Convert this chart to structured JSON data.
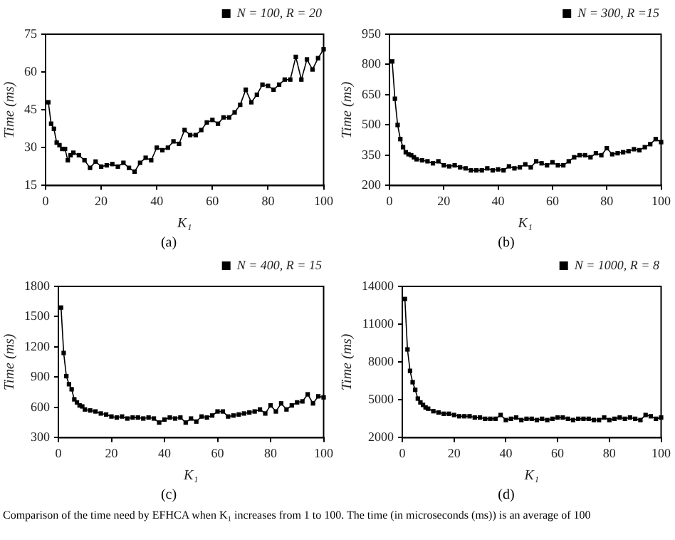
{
  "chart_data": [
    {
      "type": "line",
      "xlabel": "K₁",
      "ylabel": "Time (ms)",
      "annotations": [
        "(a)"
      ],
      "xlim": [
        0,
        100
      ],
      "xticks": [
        0,
        20,
        40,
        60,
        80,
        100
      ],
      "ylim": [
        15,
        75
      ],
      "yticks": [
        15,
        30,
        45,
        60,
        75
      ],
      "legend": "top right",
      "marker": "square",
      "line_style": "solid",
      "grid": false,
      "series": [
        {
          "name": "N = 100, R = 20",
          "color": "#000000",
          "x": [
            1,
            2,
            3,
            4,
            5,
            6,
            7,
            8,
            9,
            10,
            12,
            14,
            16,
            18,
            20,
            22,
            24,
            26,
            28,
            30,
            32,
            34,
            36,
            38,
            40,
            42,
            44,
            46,
            48,
            50,
            52,
            54,
            56,
            58,
            60,
            62,
            64,
            66,
            68,
            70,
            72,
            74,
            76,
            78,
            80,
            82,
            84,
            86,
            88,
            90,
            92,
            94,
            96,
            98,
            100
          ],
          "values": [
            48,
            39.5,
            37.5,
            32,
            31,
            29.5,
            29.5,
            25,
            27,
            28,
            27,
            25,
            22,
            24.5,
            22.5,
            23,
            23.5,
            22.5,
            24,
            22,
            20.5,
            24,
            26,
            25,
            30,
            29,
            30,
            32.5,
            31.5,
            37,
            35,
            35,
            37,
            40,
            41,
            39.5,
            42,
            42,
            44,
            47,
            53,
            48,
            51,
            55,
            54.5,
            53,
            55,
            57,
            57,
            66,
            57,
            65,
            61,
            65.5,
            69
          ]
        }
      ]
    },
    {
      "type": "line",
      "xlabel": "K₁",
      "ylabel": "Time (ms)",
      "annotations": [
        "(b)"
      ],
      "xlim": [
        0,
        100
      ],
      "xticks": [
        0,
        20,
        40,
        60,
        80,
        100
      ],
      "ylim": [
        200,
        950
      ],
      "yticks": [
        200,
        350,
        500,
        650,
        800,
        950
      ],
      "legend": "top right",
      "marker": "square",
      "line_style": "solid",
      "grid": false,
      "series": [
        {
          "name": "N = 300, R =15",
          "color": "#000000",
          "x": [
            1,
            2,
            3,
            4,
            5,
            6,
            7,
            8,
            9,
            10,
            12,
            14,
            16,
            18,
            20,
            22,
            24,
            26,
            28,
            30,
            32,
            34,
            36,
            38,
            40,
            42,
            44,
            46,
            48,
            50,
            52,
            54,
            56,
            58,
            60,
            62,
            64,
            66,
            68,
            70,
            72,
            74,
            76,
            78,
            80,
            82,
            84,
            86,
            88,
            90,
            92,
            94,
            96,
            98,
            100
          ],
          "values": [
            815,
            630,
            500,
            430,
            390,
            365,
            355,
            350,
            340,
            330,
            325,
            320,
            310,
            320,
            300,
            295,
            300,
            290,
            285,
            275,
            275,
            275,
            285,
            275,
            280,
            275,
            295,
            285,
            290,
            305,
            290,
            320,
            310,
            300,
            315,
            300,
            300,
            320,
            340,
            350,
            350,
            340,
            360,
            350,
            385,
            355,
            360,
            365,
            370,
            380,
            375,
            390,
            405,
            430,
            415
          ]
        }
      ]
    },
    {
      "type": "line",
      "xlabel": "K₁",
      "ylabel": "Time (ms)",
      "annotations": [
        "(c)"
      ],
      "xlim": [
        0,
        100
      ],
      "xticks": [
        0,
        20,
        40,
        60,
        80,
        100
      ],
      "ylim": [
        300,
        1800
      ],
      "yticks": [
        300,
        600,
        900,
        1200,
        1500,
        1800
      ],
      "legend": "top right",
      "marker": "square",
      "line_style": "solid",
      "grid": false,
      "series": [
        {
          "name": "N = 400, R = 15",
          "color": "#000000",
          "x": [
            1,
            2,
            3,
            4,
            5,
            6,
            7,
            8,
            9,
            10,
            12,
            14,
            16,
            18,
            20,
            22,
            24,
            26,
            28,
            30,
            32,
            34,
            36,
            38,
            40,
            42,
            44,
            46,
            48,
            50,
            52,
            54,
            56,
            58,
            60,
            62,
            64,
            66,
            68,
            70,
            72,
            74,
            76,
            78,
            80,
            82,
            84,
            86,
            88,
            90,
            92,
            94,
            96,
            98,
            100
          ],
          "values": [
            1590,
            1140,
            910,
            830,
            780,
            680,
            650,
            620,
            610,
            580,
            570,
            560,
            540,
            530,
            510,
            500,
            510,
            490,
            500,
            500,
            490,
            500,
            490,
            450,
            480,
            500,
            490,
            500,
            450,
            490,
            460,
            510,
            500,
            520,
            560,
            560,
            510,
            520,
            530,
            540,
            550,
            560,
            580,
            540,
            620,
            560,
            640,
            580,
            620,
            650,
            660,
            730,
            640,
            710,
            700
          ]
        }
      ]
    },
    {
      "type": "line",
      "xlabel": "K₁",
      "ylabel": "Time (ms)",
      "annotations": [
        "(d)",
        "Comparison of the time need by EFHCA when K₁ increases from 1 to 100. The time (in microseconds (ms)) is an average of 100"
      ],
      "xlim": [
        0,
        100
      ],
      "xticks": [
        0,
        20,
        40,
        60,
        80,
        100
      ],
      "ylim": [
        2000,
        14000
      ],
      "yticks": [
        2000,
        5000,
        8000,
        11000,
        14000
      ],
      "legend": "top right",
      "marker": "square",
      "line_style": "solid",
      "grid": false,
      "series": [
        {
          "name": "N = 1000, R = 8",
          "color": "#000000",
          "x": [
            1,
            2,
            3,
            4,
            5,
            6,
            7,
            8,
            9,
            10,
            12,
            14,
            16,
            18,
            20,
            22,
            24,
            26,
            28,
            30,
            32,
            34,
            36,
            38,
            40,
            42,
            44,
            46,
            48,
            50,
            52,
            54,
            56,
            58,
            60,
            62,
            64,
            66,
            68,
            70,
            72,
            74,
            76,
            78,
            80,
            82,
            84,
            86,
            88,
            90,
            92,
            94,
            96,
            98,
            100
          ],
          "values": [
            13000,
            9000,
            7300,
            6400,
            5800,
            5100,
            4800,
            4600,
            4400,
            4300,
            4100,
            4000,
            3900,
            3900,
            3800,
            3700,
            3700,
            3700,
            3600,
            3600,
            3500,
            3500,
            3500,
            3800,
            3400,
            3500,
            3600,
            3400,
            3500,
            3500,
            3400,
            3500,
            3400,
            3500,
            3600,
            3600,
            3500,
            3400,
            3500,
            3500,
            3500,
            3400,
            3400,
            3600,
            3400,
            3500,
            3600,
            3500,
            3600,
            3500,
            3400,
            3800,
            3700,
            3500,
            3600
          ]
        }
      ]
    }
  ]
}
